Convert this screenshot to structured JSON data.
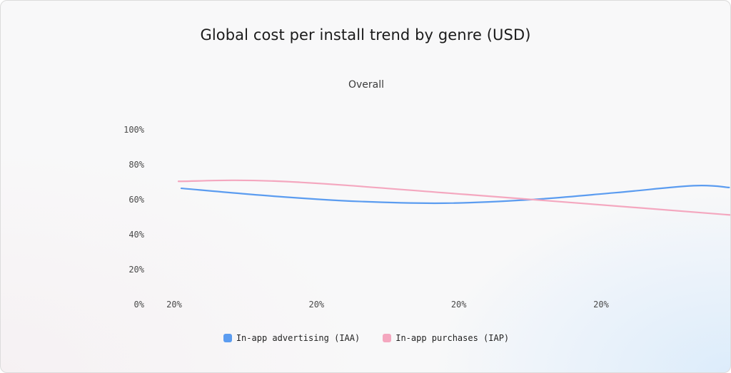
{
  "chart_data": {
    "type": "line",
    "title": "Global cost per install trend by genre (USD)",
    "subtitle": "Overall",
    "xlabel": "",
    "ylabel": "",
    "y_ticks": [
      "0%",
      "20%",
      "40%",
      "60%",
      "80%",
      "100%"
    ],
    "ylim": [
      0,
      100
    ],
    "x_ticks": [
      "20%",
      "20%",
      "20%",
      "20%"
    ],
    "grid": false,
    "legend_position": "bottom",
    "series": [
      {
        "name": "In-app advertising (IAA)",
        "color": "#5b9cf0",
        "points": [
          {
            "x": 0.05,
            "y": 66.5
          },
          {
            "x": 0.7,
            "y": 62
          },
          {
            "x": 1.3,
            "y": 59
          },
          {
            "x": 1.9,
            "y": 58
          },
          {
            "x": 2.5,
            "y": 60
          },
          {
            "x": 3.1,
            "y": 64
          },
          {
            "x": 3.65,
            "y": 68
          },
          {
            "x": 3.9,
            "y": 67
          }
        ]
      },
      {
        "name": "In-app purchases (IAP)",
        "color": "#f4a7bf",
        "points": [
          {
            "x": 0.03,
            "y": 70.5
          },
          {
            "x": 0.75,
            "y": 70.5
          },
          {
            "x": 2.05,
            "y": 63
          },
          {
            "x": 3.95,
            "y": 51
          }
        ]
      }
    ]
  }
}
